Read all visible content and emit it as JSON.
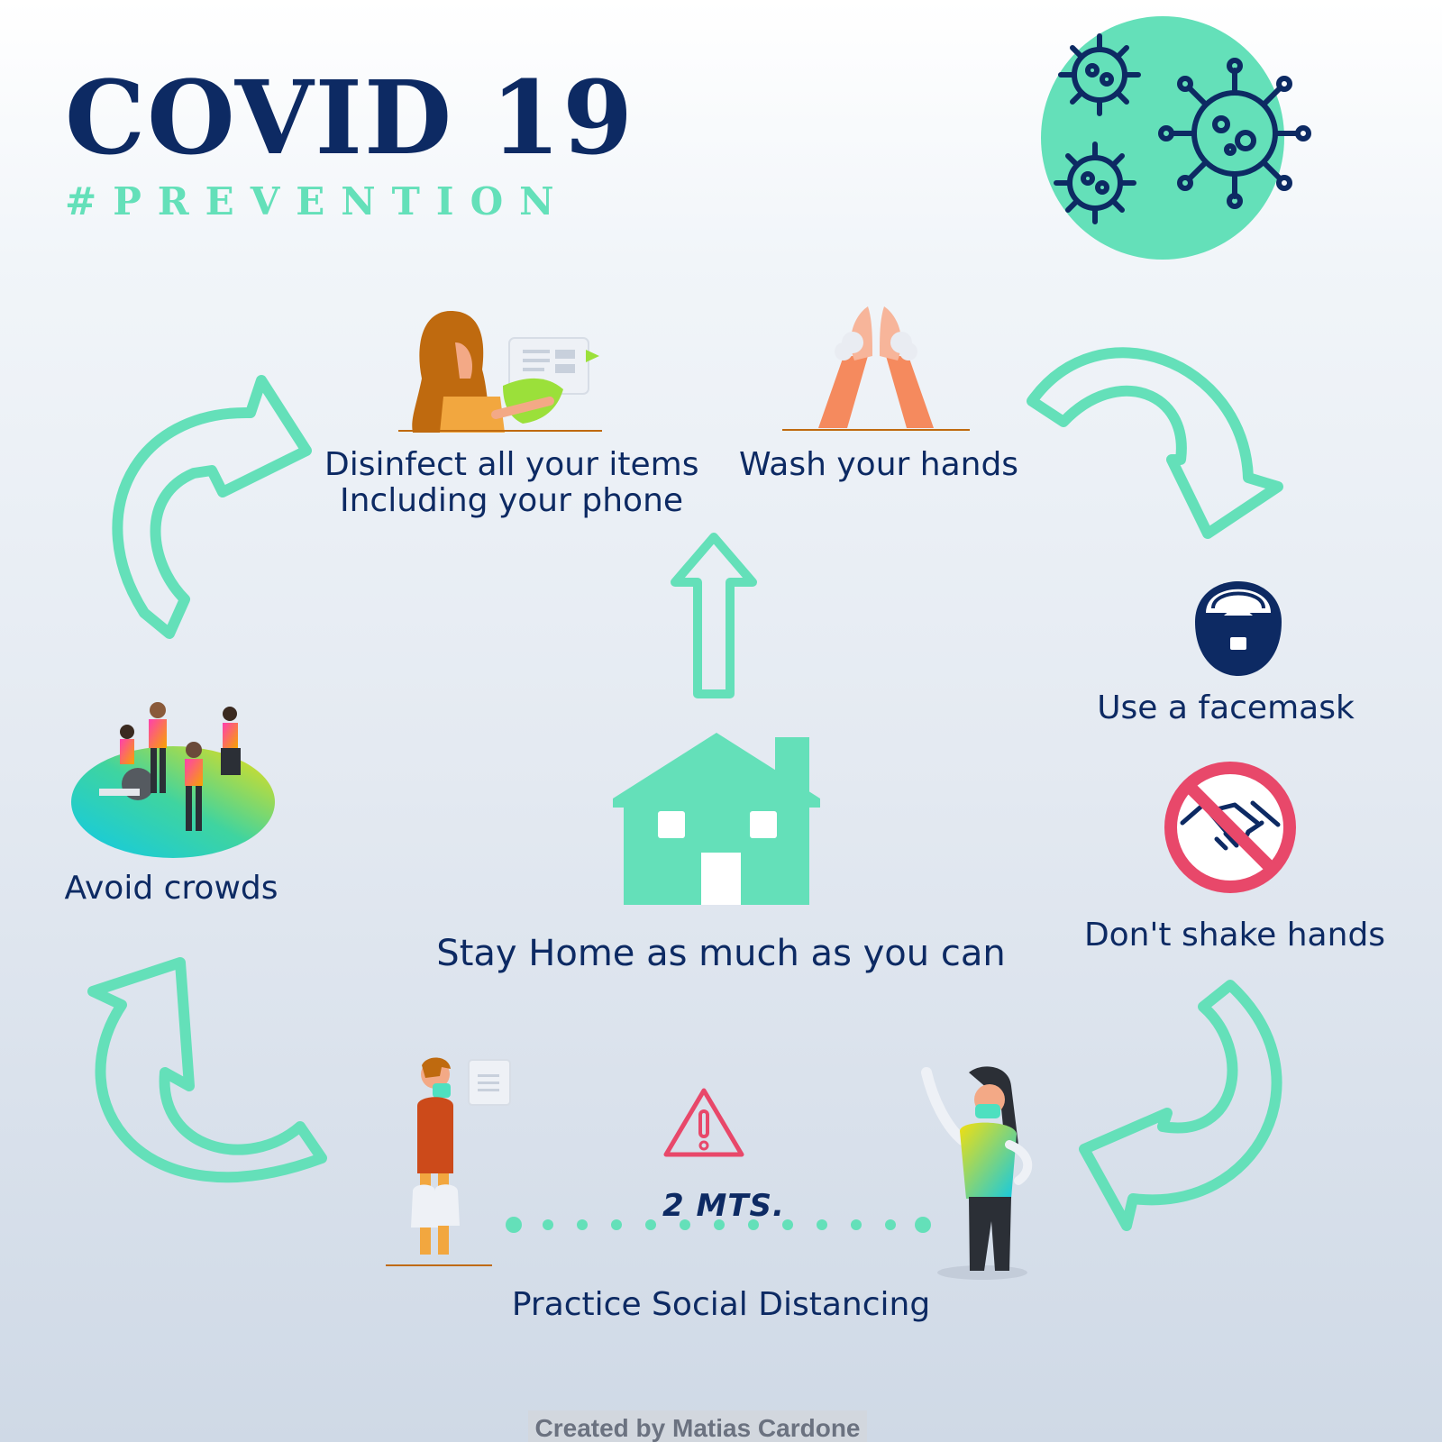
{
  "header": {
    "title": "COVID 19",
    "subtitle": "#PREVENTION"
  },
  "tips": {
    "disinfect_line1": "Disinfect all your items",
    "disinfect_line2": "Including your phone",
    "wash_hands": "Wash your hands",
    "facemask": "Use a facemask",
    "no_handshake": "Don't shake hands",
    "stay_home": "Stay Home as much as you can",
    "avoid_crowds": "Avoid crowds",
    "social_distancing": "Practice Social Distancing"
  },
  "distance": "2 MTS.",
  "credit": "Created by Matias Cardone",
  "colors": {
    "navy": "#0d2a63",
    "mint": "#64e0b9",
    "warning_red": "#e8486a"
  }
}
